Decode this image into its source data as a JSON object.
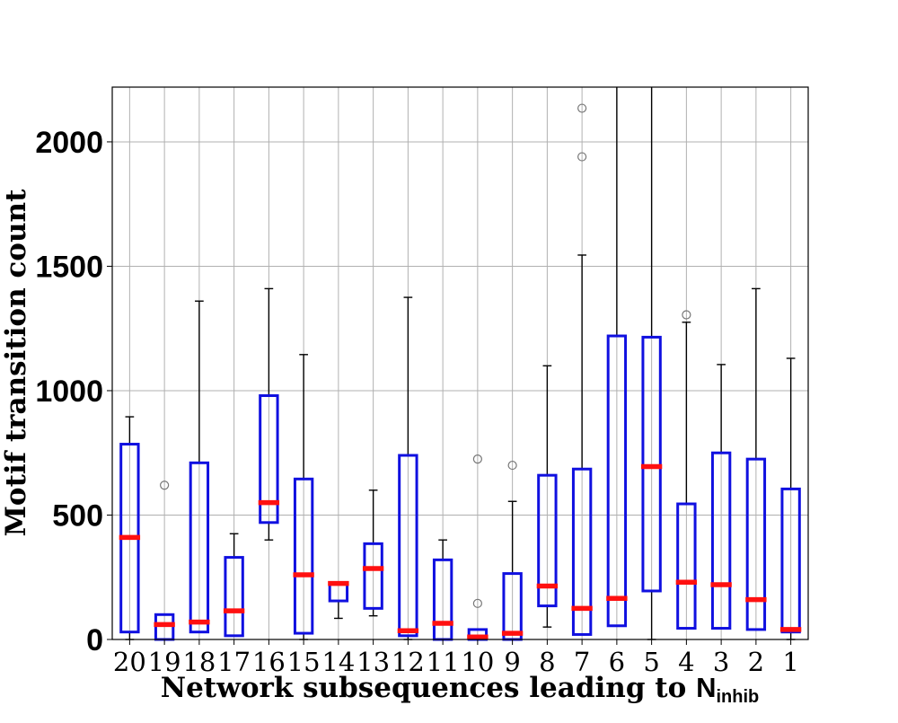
{
  "chart_data": {
    "type": "box",
    "xlabel_prefix": "Network subsequences leading to ",
    "xlabel_symbol": "N",
    "xlabel_subscript": "inhib",
    "ylabel": "Motif transition count",
    "categories": [
      "20",
      "19",
      "18",
      "17",
      "16",
      "15",
      "14",
      "13",
      "12",
      "11",
      "10",
      "9",
      "8",
      "7",
      "6",
      "5",
      "4",
      "3",
      "2",
      "1"
    ],
    "ylim": [
      0,
      2220
    ],
    "yticks": [
      0,
      500,
      1000,
      1500,
      2000
    ],
    "grid": true,
    "box_color": "#1010e0",
    "median_color": "#ff1010",
    "whisker_color": "#000000",
    "outlier_color": "#777777",
    "boxes": [
      {
        "category": "20",
        "whislo": 0,
        "q1": 30,
        "med": 410,
        "q3": 785,
        "whishi": 895,
        "fliers": []
      },
      {
        "category": "19",
        "whislo": 0,
        "q1": 0,
        "med": 60,
        "q3": 100,
        "whishi": 100,
        "fliers": [
          620
        ]
      },
      {
        "category": "18",
        "whislo": 30,
        "q1": 30,
        "med": 70,
        "q3": 710,
        "whishi": 1360,
        "fliers": []
      },
      {
        "category": "17",
        "whislo": 15,
        "q1": 15,
        "med": 115,
        "q3": 330,
        "whishi": 425,
        "fliers": []
      },
      {
        "category": "16",
        "whislo": 400,
        "q1": 470,
        "med": 550,
        "q3": 980,
        "whishi": 1410,
        "fliers": []
      },
      {
        "category": "15",
        "whislo": 0,
        "q1": 25,
        "med": 260,
        "q3": 645,
        "whishi": 1145,
        "fliers": []
      },
      {
        "category": "14",
        "whislo": 85,
        "q1": 155,
        "med": 225,
        "q3": 225,
        "whishi": 225,
        "fliers": []
      },
      {
        "category": "13",
        "whislo": 95,
        "q1": 125,
        "med": 285,
        "q3": 385,
        "whishi": 600,
        "fliers": []
      },
      {
        "category": "12",
        "whislo": 0,
        "q1": 15,
        "med": 35,
        "q3": 740,
        "whishi": 1375,
        "fliers": []
      },
      {
        "category": "11",
        "whislo": 0,
        "q1": 0,
        "med": 65,
        "q3": 320,
        "whishi": 400,
        "fliers": []
      },
      {
        "category": "10",
        "whislo": 0,
        "q1": 0,
        "med": 10,
        "q3": 40,
        "whishi": 40,
        "fliers": [
          145,
          725
        ]
      },
      {
        "category": "9",
        "whislo": 0,
        "q1": 0,
        "med": 25,
        "q3": 265,
        "whishi": 555,
        "fliers": [
          700
        ]
      },
      {
        "category": "8",
        "whislo": 50,
        "q1": 135,
        "med": 215,
        "q3": 660,
        "whishi": 1100,
        "fliers": []
      },
      {
        "category": "7",
        "whislo": 20,
        "q1": 20,
        "med": 125,
        "q3": 685,
        "whishi": 1545,
        "fliers": [
          1940,
          2135
        ]
      },
      {
        "category": "6",
        "whislo": 55,
        "q1": 55,
        "med": 165,
        "q3": 1220,
        "whishi": 2220,
        "fliers": []
      },
      {
        "category": "5",
        "whislo": 0,
        "q1": 195,
        "med": 695,
        "q3": 1215,
        "whishi": 2220,
        "fliers": []
      },
      {
        "category": "4",
        "whislo": 45,
        "q1": 45,
        "med": 230,
        "q3": 545,
        "whishi": 1275,
        "fliers": [
          1305
        ]
      },
      {
        "category": "3",
        "whislo": 45,
        "q1": 45,
        "med": 220,
        "q3": 750,
        "whishi": 1105,
        "fliers": []
      },
      {
        "category": "2",
        "whislo": 40,
        "q1": 40,
        "med": 160,
        "q3": 725,
        "whishi": 1410,
        "fliers": []
      },
      {
        "category": "1",
        "whislo": 0,
        "q1": 30,
        "med": 40,
        "q3": 605,
        "whishi": 1130,
        "fliers": []
      }
    ]
  }
}
